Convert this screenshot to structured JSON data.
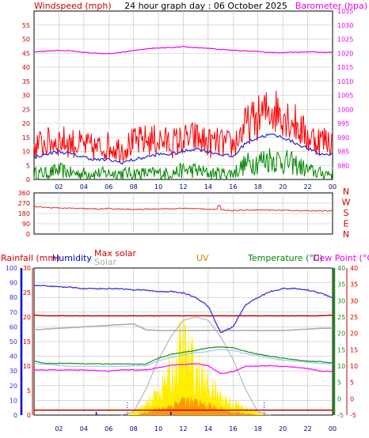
{
  "header": {
    "title": "24 hour graph day : 06 October 2025",
    "left_label": "Windspeed (mph)",
    "right_label": "Barometer (hpa)"
  },
  "colors": {
    "windspeed": "#ff0000",
    "wind_avg": "#2222dd",
    "wind_low": "#008800",
    "barometer": "#ee00ee",
    "direction": "#dd3333",
    "rain": "#0000dd",
    "humidity": "#3333dd",
    "maxsolar_line": "#aaaaaa",
    "temperature": "#228822",
    "dewpoint": "#ff00ff",
    "solar_fill": "#ffee00",
    "uv_fill": "#ff8800",
    "dark_red": "#cc0000",
    "grid": "#c0c0c0"
  },
  "x_ticks": [
    "02",
    "04",
    "06",
    "08",
    "10",
    "12",
    "14",
    "16",
    "18",
    "20",
    "22",
    "00"
  ],
  "chart_data": [
    {
      "type": "line",
      "name_key": "wind_baro",
      "ylabel": "Windspeed (mph)",
      "y2label": "Barometer (hpa)",
      "ylim": [
        0,
        60
      ],
      "y2lim": [
        975,
        1035
      ],
      "y_ticks": [
        0,
        5,
        10,
        15,
        20,
        25,
        30,
        35,
        40,
        45,
        50,
        55
      ],
      "y2_ticks": [
        980,
        985,
        990,
        995,
        1000,
        1005,
        1010,
        1015,
        1020,
        1025,
        1030,
        1035
      ],
      "x_hours": [
        0,
        1,
        2,
        3,
        4,
        5,
        6,
        7,
        8,
        9,
        10,
        11,
        12,
        13,
        14,
        15,
        16,
        17,
        18,
        19,
        20,
        21,
        22,
        23,
        24
      ],
      "series": [
        {
          "key": "gust",
          "values": [
            12,
            13,
            14,
            13,
            12,
            11,
            12,
            11,
            13,
            14,
            14,
            13,
            14,
            15,
            13,
            13,
            12,
            19,
            22,
            25,
            24,
            20,
            15,
            14,
            14
          ]
        },
        {
          "key": "average",
          "values": [
            8,
            9,
            10,
            9,
            8,
            7,
            7,
            6,
            7,
            8,
            9,
            9,
            10,
            11,
            10,
            9,
            8,
            13,
            15,
            16,
            15,
            13,
            11,
            9,
            9
          ]
        },
        {
          "key": "low",
          "values": [
            2,
            2,
            3,
            2,
            2,
            2,
            2,
            2,
            2,
            2,
            2,
            2,
            3,
            3,
            2,
            2,
            2,
            5,
            6,
            7,
            6,
            5,
            3,
            2,
            2
          ]
        },
        {
          "key": "barometer",
          "values": [
            1020.5,
            1020.7,
            1021.0,
            1020.8,
            1020.3,
            1020.0,
            1019.8,
            1020.3,
            1021.0,
            1021.5,
            1021.8,
            1022.0,
            1022.3,
            1022.0,
            1021.7,
            1021.3,
            1021.0,
            1020.8,
            1020.5,
            1020.3,
            1020.2,
            1020.4,
            1020.5,
            1020.3,
            1020.3
          ]
        }
      ]
    },
    {
      "type": "line",
      "name_key": "direction",
      "ylim": [
        0,
        360
      ],
      "y_ticks": [
        0,
        90,
        180,
        270,
        360
      ],
      "y_tick_labels": [
        "0",
        "90",
        "180",
        "270",
        "360"
      ],
      "compass": [
        "N",
        "W",
        "S",
        "E",
        "N"
      ],
      "x_hours": [
        0,
        1,
        2,
        3,
        4,
        5,
        6,
        7,
        8,
        9,
        10,
        11,
        12,
        13,
        14,
        15,
        16,
        17,
        18,
        19,
        20,
        21,
        22,
        23,
        24
      ],
      "series": [
        {
          "key": "direction",
          "values": [
            240,
            232,
            228,
            225,
            222,
            220,
            222,
            218,
            215,
            218,
            222,
            220,
            225,
            222,
            218,
            215,
            205,
            210,
            212,
            210,
            208,
            205,
            205,
            202,
            202
          ]
        }
      ]
    },
    {
      "type": "line",
      "name_key": "weather",
      "legend": {
        "rainfall": "Rainfall (mm)",
        "humidity": "Humidity",
        "max_solar": "Max solar",
        "solar": "Solar",
        "uv": "UV",
        "temperature": "Temperature (°C)",
        "dewpoint": "Dew Point (°C)"
      },
      "humidity_ylim": [
        0,
        100
      ],
      "humidity_ticks": [
        0,
        10,
        20,
        30,
        40,
        50,
        60,
        70,
        80,
        90,
        100
      ],
      "rain_ylim": [
        0,
        30
      ],
      "rain_ticks": [
        0,
        5,
        10,
        15,
        20,
        25,
        30
      ],
      "temp_ylim": [
        -5,
        40
      ],
      "temp_ticks": [
        -5,
        0,
        5,
        10,
        15,
        20,
        25,
        30,
        35,
        40
      ],
      "x_hours": [
        0,
        1,
        2,
        3,
        4,
        5,
        6,
        7,
        8,
        9,
        10,
        11,
        12,
        13,
        14,
        15,
        16,
        17,
        18,
        19,
        20,
        21,
        22,
        23,
        24
      ],
      "series": [
        {
          "key": "humidity",
          "values": [
            88,
            88,
            87,
            87,
            86,
            86,
            86,
            86,
            85,
            85,
            84,
            84,
            83,
            80,
            74,
            56,
            60,
            75,
            80,
            84,
            86,
            86,
            85,
            83,
            80
          ]
        },
        {
          "key": "rain_dark",
          "values": [
            68,
            67.5,
            67.5,
            67.5,
            67.5,
            67.5,
            67.5,
            67.5,
            67.5,
            67.5,
            67.5,
            67.5,
            67.5,
            67.5,
            67.5,
            67.5,
            67.5,
            67.5,
            67.5,
            67.5,
            67.5,
            67.5,
            67.5,
            67.5,
            68
          ]
        },
        {
          "key": "grey_line",
          "values": [
            58,
            58.5,
            59,
            59.5,
            60,
            60.5,
            61,
            61.5,
            62,
            58,
            57.5,
            57.5,
            57.5,
            57.5,
            57.5,
            57.5,
            57.5,
            57.5,
            57.5,
            57.5,
            57.5,
            58,
            58.5,
            59,
            59
          ]
        },
        {
          "key": "temperature",
          "values": [
            11.5,
            10.8,
            10.8,
            10.8,
            10.7,
            10.7,
            10.6,
            10.6,
            10.6,
            10.6,
            12.4,
            13.6,
            14.2,
            14.8,
            15.6,
            15.9,
            15.6,
            14.5,
            13.7,
            13.0,
            12.4,
            11.9,
            11.5,
            11.4,
            10.9
          ]
        },
        {
          "key": "apparent",
          "values": [
            10.8,
            10.5,
            10.2,
            9.9,
            9.9,
            9.9,
            9.9,
            9.9,
            10.1,
            10.1,
            11.6,
            12.6,
            13.4,
            14.1,
            14.5,
            15.1,
            14.8,
            13.8,
            13.2,
            12.4,
            11.8,
            11.5,
            11.2,
            10.8,
            10.6
          ]
        },
        {
          "key": "dewpoint",
          "values": [
            8.8,
            8.8,
            8.8,
            8.8,
            8.8,
            8.6,
            8.4,
            8.8,
            8.8,
            8.8,
            9.5,
            10.2,
            10.5,
            10.7,
            10.1,
            7.7,
            8.3,
            9.9,
            10.0,
            10.1,
            9.9,
            9.7,
            9.2,
            8.5,
            8.3
          ]
        },
        {
          "key": "max_solar",
          "values": [
            0,
            0,
            0,
            0,
            0,
            0,
            0,
            0,
            1,
            8,
            17,
            24,
            29,
            30,
            29,
            24,
            17,
            8,
            1,
            0,
            0,
            0,
            0,
            0,
            0
          ]
        },
        {
          "key": "solar",
          "values": [
            0,
            0,
            0,
            0,
            0,
            0,
            0,
            0,
            1,
            3,
            8,
            13,
            23,
            15,
            10,
            6,
            4,
            2,
            1,
            0,
            0,
            0,
            0,
            0,
            0
          ]
        },
        {
          "key": "uv",
          "values": [
            0,
            0,
            0,
            0,
            0,
            0,
            0,
            0,
            0,
            1,
            2,
            3,
            5,
            4,
            3,
            2,
            1,
            0.5,
            0,
            0,
            0,
            0,
            0,
            0,
            0
          ]
        },
        {
          "key": "rain_baseline",
          "values": [
            1,
            1,
            1,
            1,
            1,
            1,
            1,
            1,
            1,
            1,
            1,
            1,
            1,
            1,
            1,
            1,
            1,
            1,
            1,
            1,
            1,
            1,
            1,
            1,
            1
          ]
        }
      ]
    }
  ]
}
